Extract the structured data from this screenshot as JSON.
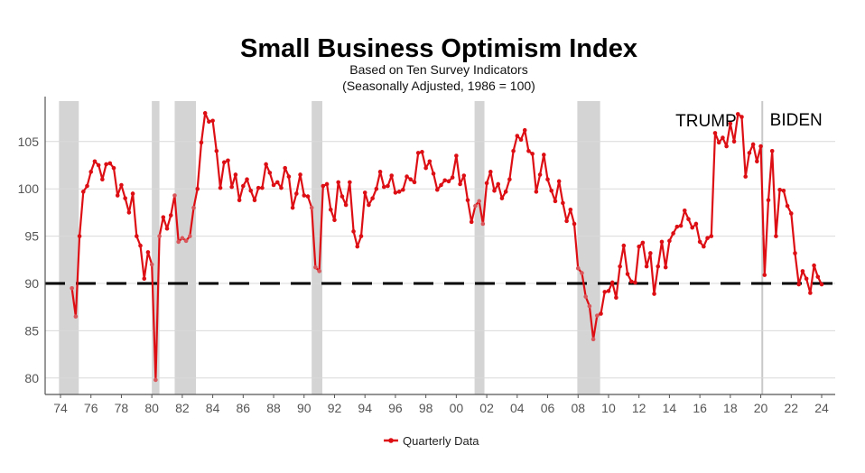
{
  "chart_data": {
    "type": "line",
    "title": "Small Business Optimism Index",
    "subtitle": [
      "Based on Ten Survey Indicators",
      "(Seasonally Adjusted, 1986 = 100)"
    ],
    "xlabel": "",
    "ylabel": "",
    "xlim": [
      1973.5,
      2024.8
    ],
    "ylim": [
      78.5,
      109
    ],
    "x_tick_labels": [
      "74",
      "76",
      "78",
      "80",
      "82",
      "84",
      "86",
      "88",
      "90",
      "92",
      "94",
      "96",
      "98",
      "00",
      "02",
      "04",
      "06",
      "08",
      "10",
      "12",
      "14",
      "16",
      "18",
      "20",
      "22",
      "24"
    ],
    "y_ticks": [
      80,
      85,
      90,
      95,
      100,
      105
    ],
    "grid": "horizontal",
    "reference_line": {
      "value": 90,
      "style": "dashed",
      "color": "#000000"
    },
    "recession_bands": [
      [
        1973.9,
        1975.2
      ],
      [
        1980.0,
        1980.5
      ],
      [
        1981.5,
        1982.9
      ],
      [
        1990.5,
        1991.2
      ],
      [
        2001.2,
        2001.85
      ],
      [
        2007.95,
        2009.45
      ]
    ],
    "event_line": {
      "x": 2020.1
    },
    "annotations": [
      {
        "text": "TRUMP",
        "x": 2014.4,
        "y": 106.6
      },
      {
        "text": "BIDEN",
        "x": 2020.6,
        "y": 106.7
      }
    ],
    "legend": {
      "position": "bottom",
      "entries": [
        "Quarterly Data"
      ]
    },
    "colors": {
      "series": "#dd0f14",
      "band": "#d4d4d4",
      "grid": "#d9d9d9"
    },
    "series": [
      {
        "name": "Quarterly Data",
        "x": [
          1974.75,
          1975,
          1975.25,
          1975.5,
          1975.75,
          1976,
          1976.25,
          1976.5,
          1976.75,
          1977,
          1977.25,
          1977.5,
          1977.75,
          1978,
          1978.25,
          1978.5,
          1978.75,
          1979,
          1979.25,
          1979.5,
          1979.75,
          1980,
          1980.25,
          1980.5,
          1980.75,
          1981,
          1981.25,
          1981.5,
          1981.75,
          1982,
          1982.25,
          1982.5,
          1982.75,
          1983,
          1983.25,
          1983.5,
          1983.75,
          1984,
          1984.25,
          1984.5,
          1984.75,
          1985,
          1985.25,
          1985.5,
          1985.75,
          1986,
          1986.25,
          1986.5,
          1986.75,
          1987,
          1987.25,
          1987.5,
          1987.75,
          1988,
          1988.25,
          1988.5,
          1988.75,
          1989,
          1989.25,
          1989.5,
          1989.75,
          1990,
          1990.25,
          1990.5,
          1990.75,
          1991,
          1991.25,
          1991.5,
          1991.75,
          1992,
          1992.25,
          1992.5,
          1992.75,
          1993,
          1993.25,
          1993.5,
          1993.75,
          1994,
          1994.25,
          1994.5,
          1994.75,
          1995,
          1995.25,
          1995.5,
          1995.75,
          1996,
          1996.25,
          1996.5,
          1996.75,
          1997,
          1997.25,
          1997.5,
          1997.75,
          1998,
          1998.25,
          1998.5,
          1998.75,
          1999,
          1999.25,
          1999.5,
          1999.75,
          2000,
          2000.25,
          2000.5,
          2000.75,
          2001,
          2001.25,
          2001.5,
          2001.75,
          2002,
          2002.25,
          2002.5,
          2002.75,
          2003,
          2003.25,
          2003.5,
          2003.75,
          2004,
          2004.25,
          2004.5,
          2004.75,
          2005,
          2005.25,
          2005.5,
          2005.75,
          2006,
          2006.25,
          2006.5,
          2006.75,
          2007,
          2007.25,
          2007.5,
          2007.75,
          2008,
          2008.25,
          2008.5,
          2008.75,
          2009,
          2009.25,
          2009.5,
          2009.75,
          2010,
          2010.25,
          2010.5,
          2010.75,
          2011,
          2011.25,
          2011.5,
          2011.75,
          2012,
          2012.25,
          2012.5,
          2012.75,
          2013,
          2013.25,
          2013.5,
          2013.75,
          2014,
          2014.25,
          2014.5,
          2014.75,
          2015,
          2015.25,
          2015.5,
          2015.75,
          2016,
          2016.25,
          2016.5,
          2016.75,
          2017,
          2017.25,
          2017.5,
          2017.75,
          2018,
          2018.25,
          2018.5,
          2018.75,
          2019,
          2019.25,
          2019.5,
          2019.75,
          2020,
          2020.25,
          2020.5,
          2020.75,
          2021,
          2021.25,
          2021.5,
          2021.75,
          2022,
          2022.25,
          2022.5,
          2022.75,
          2023,
          2023.25,
          2023.5,
          2023.75,
          2024
        ],
        "values": [
          89.5,
          86.5,
          95,
          99.7,
          100.3,
          101.8,
          102.9,
          102.5,
          101,
          102.6,
          102.7,
          102.2,
          99.3,
          100.4,
          99,
          97.5,
          99.5,
          95,
          94,
          90.5,
          93.3,
          92,
          79.8,
          95,
          97,
          95.8,
          97.2,
          99.3,
          94.4,
          94.8,
          94.5,
          95,
          98,
          100,
          104.9,
          108,
          107.1,
          107.2,
          104,
          100.1,
          102.8,
          103,
          100.2,
          101.5,
          98.8,
          100.3,
          101,
          99.8,
          98.8,
          100.1,
          100.1,
          102.6,
          101.7,
          100.4,
          100.7,
          100.1,
          102.2,
          101.3,
          98,
          99.5,
          101.5,
          99.3,
          99.2,
          98,
          91.7,
          91.3,
          100.3,
          100.5,
          97.8,
          96.7,
          100.7,
          99.2,
          98.3,
          100.7,
          95.5,
          93.9,
          95,
          99.6,
          98.3,
          99,
          100,
          101.8,
          100.2,
          100.3,
          101.4,
          99.6,
          99.7,
          99.9,
          101.3,
          101,
          100.7,
          103.8,
          103.9,
          102.2,
          102.9,
          101.6,
          99.9,
          100.4,
          100.9,
          100.8,
          101.2,
          103.5,
          100.5,
          101.4,
          98.8,
          96.5,
          98.2,
          98.7,
          96.3,
          100.6,
          101.8,
          99.8,
          100.5,
          99,
          99.7,
          101,
          104,
          105.6,
          105.2,
          106.2,
          104,
          103.7,
          99.7,
          101.5,
          103.6,
          101,
          99.8,
          98.7,
          100.8,
          98.5,
          96.6,
          97.8,
          96.3,
          91.6,
          91.1,
          88.6,
          87.6,
          84.1,
          86.6,
          86.8,
          89.1,
          89.2,
          90.1,
          88.5,
          91.8,
          94,
          91,
          90.2,
          90.1,
          93.9,
          94.3,
          91.8,
          93.2,
          88.9,
          91.8,
          94.4,
          91.7,
          94.5,
          95.3,
          96,
          96.1,
          97.7,
          96.8,
          95.9,
          96.3,
          94.4,
          93.9,
          94.8,
          95,
          105.9,
          104.9,
          105.4,
          104.5,
          106.9,
          105,
          107.9,
          107.6,
          101.3,
          103.8,
          104.7,
          102.9,
          104.5,
          90.9,
          98.8,
          104,
          95,
          99.9,
          99.8,
          98.2,
          97.4,
          93.2,
          89.9,
          91.3,
          90.5,
          89,
          91.9,
          90.7,
          89.9
        ]
      }
    ]
  }
}
